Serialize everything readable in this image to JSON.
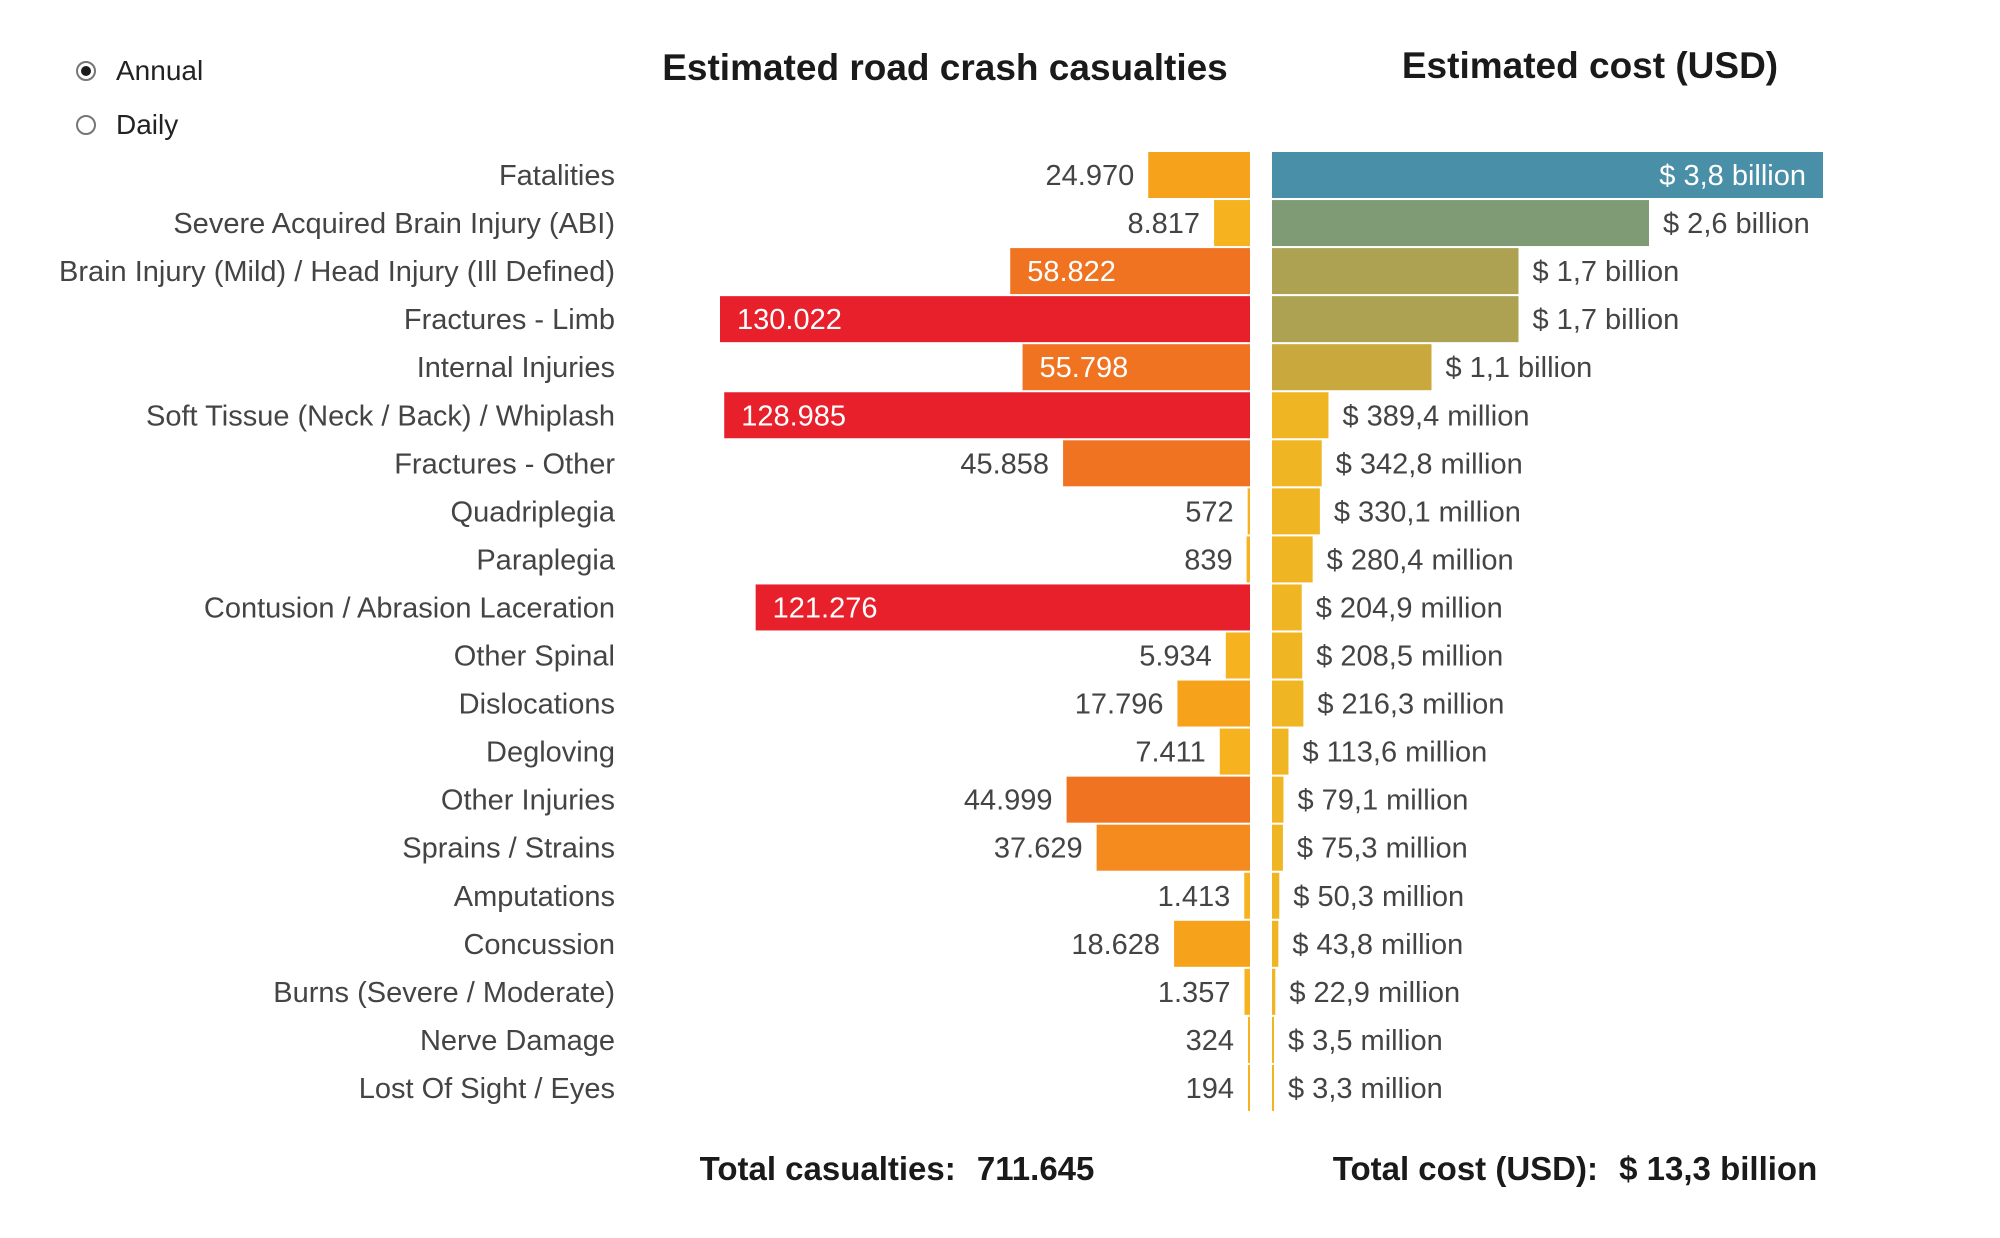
{
  "controls": {
    "period_options": [
      {
        "label": "Annual",
        "selected": true
      },
      {
        "label": "Daily",
        "selected": false
      }
    ]
  },
  "chart_data": {
    "type": "bar",
    "left_panel": {
      "title": "Estimated road crash casualties",
      "total_label": "Total casualties:",
      "total_value": "711.645"
    },
    "right_panel": {
      "title": "Estimated cost (USD)",
      "total_label": "Total cost (USD):",
      "total_value": "$ 13,3 billion"
    },
    "categories": [
      "Fatalities",
      "Severe Acquired Brain Injury (ABI)",
      "Brain Injury (Mild) / Head Injury (Ill Defined)",
      "Fractures - Limb",
      "Internal Injuries",
      "Soft Tissue (Neck / Back) / Whiplash",
      "Fractures - Other",
      "Quadriplegia",
      "Paraplegia",
      "Contusion / Abrasion Laceration",
      "Other Spinal",
      "Dislocations",
      "Degloving",
      "Other Injuries",
      "Sprains / Strains",
      "Amputations",
      "Concussion",
      "Burns (Severe / Moderate)",
      "Nerve Damage",
      "Lost Of Sight / Eyes"
    ],
    "series": [
      {
        "name": "Estimated road crash casualties",
        "values": [
          24970,
          8817,
          58822,
          130022,
          55798,
          128985,
          45858,
          572,
          839,
          121276,
          5934,
          17796,
          7411,
          44999,
          37629,
          1413,
          18628,
          1357,
          324,
          194
        ],
        "labels": [
          "24.970",
          "8.817",
          "58.822",
          "130.022",
          "55.798",
          "128.985",
          "45.858",
          "572",
          "839",
          "121.276",
          "5.934",
          "17.796",
          "7.411",
          "44.999",
          "37.629",
          "1.413",
          "18.628",
          "1.357",
          "324",
          "194"
        ],
        "colors": [
          "#f7a21b",
          "#f6b31f",
          "#f07322",
          "#e8202b",
          "#f07322",
          "#e8202b",
          "#f07322",
          "#f6b31f",
          "#f6b31f",
          "#e8202b",
          "#f6b31f",
          "#f7a21b",
          "#f6b31f",
          "#f07322",
          "#f58a1f",
          "#f6b31f",
          "#f7a21b",
          "#f6b31f",
          "#f6b31f",
          "#f6b31f"
        ]
      },
      {
        "name": "Estimated cost (USD)",
        "values": [
          3800,
          2600,
          1700,
          1700,
          1100,
          389.4,
          342.8,
          330.1,
          280.4,
          204.9,
          208.5,
          216.3,
          113.6,
          79.1,
          75.3,
          50.3,
          43.8,
          22.9,
          3.5,
          3.3
        ],
        "value_unit": "USD million",
        "labels": [
          "$ 3,8 billion",
          "$ 2,6 billion",
          "$ 1,7 billion",
          "$ 1,7 billion",
          "$ 1,1 billion",
          "$ 389,4 million",
          "$ 342,8 million",
          "$ 330,1 million",
          "$ 280,4 million",
          "$ 204,9 million",
          "$ 208,5 million",
          "$ 216,3 million",
          "$ 113,6 million",
          "$ 79,1 million",
          "$ 75,3 million",
          "$ 50,3 million",
          "$ 43,8 million",
          "$ 22,9 million",
          "$ 3,5 million",
          "$ 3,3 million"
        ],
        "colors": [
          "#4a8fa8",
          "#7f9b76",
          "#aca251",
          "#aca251",
          "#c9a83e",
          "#f0b522",
          "#f0b522",
          "#f0b522",
          "#f0b522",
          "#f0b522",
          "#f0b522",
          "#f0b522",
          "#f0b522",
          "#f0b522",
          "#f0b522",
          "#f0b522",
          "#f0b522",
          "#f0b522",
          "#f0b522",
          "#f0b522"
        ]
      }
    ],
    "text_color": "#444444",
    "inside_label_color": "#ffffff"
  }
}
